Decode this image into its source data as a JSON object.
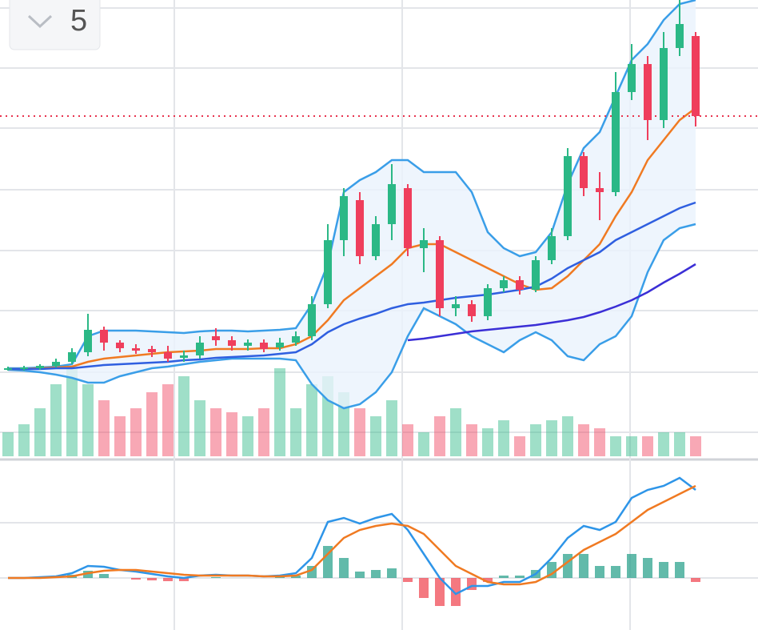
{
  "toolbar": {
    "interval": "5"
  },
  "chart_data": [
    {
      "type": "candlestick",
      "xlim": [
        -0.5,
        46.9
      ],
      "ylim": [
        0,
        570
      ],
      "xticks": [
        10.4,
        24.65,
        38.9
      ],
      "yticks": [
        30,
        105,
        182,
        257,
        333,
        410,
        485,
        560
      ],
      "grid": true,
      "up_color": "#2bb886",
      "down_color": "#ef3e5c",
      "price_line": 425,
      "price_line_color": "#e8334f",
      "open": [
        108,
        109,
        110,
        113,
        118,
        130,
        158,
        142,
        135,
        134,
        130,
        123,
        126,
        150,
        145,
        138,
        142,
        136,
        142,
        150,
        190,
        270,
        320,
        250,
        290,
        335,
        260,
        270,
        185,
        190,
        175,
        210,
        220,
        208,
        245,
        275,
        375,
        335,
        330,
        455,
        490,
        420,
        510,
        525
      ],
      "high": [
        112,
        113,
        115,
        122,
        135,
        178,
        162,
        145,
        140,
        138,
        138,
        132,
        150,
        160,
        150,
        146,
        146,
        148,
        156,
        200,
        290,
        335,
        330,
        300,
        365,
        340,
        285,
        275,
        200,
        195,
        215,
        225,
        225,
        250,
        285,
        385,
        380,
        355,
        480,
        515,
        500,
        530,
        570,
        530
      ],
      "low": [
        107,
        107,
        108,
        111,
        115,
        125,
        132,
        130,
        128,
        124,
        118,
        118,
        122,
        138,
        132,
        132,
        130,
        132,
        138,
        145,
        185,
        250,
        240,
        245,
        270,
        250,
        230,
        175,
        175,
        168,
        170,
        205,
        202,
        205,
        240,
        270,
        325,
        295,
        325,
        445,
        395,
        410,
        500,
        412
      ],
      "close": [
        110,
        111,
        113,
        118,
        130,
        158,
        142,
        135,
        132,
        130,
        122,
        126,
        142,
        145,
        138,
        142,
        134,
        142,
        150,
        190,
        270,
        325,
        250,
        290,
        340,
        260,
        270,
        185,
        190,
        175,
        210,
        220,
        208,
        245,
        275,
        375,
        335,
        330,
        455,
        490,
        420,
        510,
        540,
        425
      ],
      "volume_ylim": [
        0,
        570
      ],
      "volume": [
        30,
        40,
        60,
        90,
        110,
        90,
        70,
        50,
        60,
        80,
        90,
        100,
        70,
        60,
        55,
        50,
        60,
        110,
        60,
        90,
        100,
        80,
        60,
        50,
        70,
        40,
        30,
        50,
        60,
        40,
        35,
        45,
        25,
        40,
        45,
        50,
        40,
        35,
        25,
        25,
        25,
        30,
        30,
        25
      ],
      "series": [
        {
          "color": "#3a9ee8",
          "values": [
            110,
            110,
            111,
            112,
            115,
            150,
            157,
            157,
            157,
            156,
            155,
            154,
            156,
            157,
            157,
            156,
            157,
            158,
            160,
            190,
            240,
            330,
            345,
            355,
            370,
            370,
            355,
            355,
            355,
            330,
            280,
            260,
            250,
            255,
            280,
            340,
            385,
            405,
            450,
            495,
            515,
            545,
            565,
            570
          ]
        },
        {
          "color": "#3a9ee8",
          "values": [
            108,
            107,
            105,
            102,
            98,
            92,
            92,
            100,
            105,
            110,
            112,
            115,
            118,
            120,
            122,
            122,
            122,
            122,
            120,
            90,
            70,
            60,
            65,
            80,
            105,
            150,
            185,
            175,
            165,
            150,
            140,
            130,
            145,
            155,
            145,
            125,
            120,
            140,
            150,
            175,
            230,
            270,
            285,
            290
          ]
        },
        {
          "color": "#f07a22",
          "values": [
            109,
            109,
            110,
            111,
            112,
            118,
            122,
            124,
            126,
            128,
            130,
            131,
            132,
            134,
            134,
            134,
            135,
            135,
            140,
            150,
            170,
            195,
            210,
            225,
            240,
            260,
            265,
            265,
            255,
            245,
            235,
            225,
            215,
            208,
            210,
            225,
            245,
            265,
            300,
            330,
            370,
            395,
            420,
            435
          ]
        },
        {
          "color": "#2f5fe0",
          "values": [
            109,
            109,
            109,
            110,
            110,
            112,
            114,
            115,
            116,
            117,
            118,
            120,
            121,
            123,
            124,
            125,
            126,
            128,
            130,
            140,
            155,
            165,
            172,
            178,
            185,
            190,
            192,
            195,
            198,
            200,
            202,
            205,
            208,
            212,
            222,
            235,
            245,
            255,
            270,
            280,
            290,
            300,
            310,
            317
          ]
        },
        {
          "color": "#3b2fd6",
          "values": [
            null,
            null,
            null,
            null,
            null,
            null,
            null,
            null,
            null,
            null,
            null,
            null,
            null,
            null,
            null,
            null,
            null,
            null,
            null,
            null,
            null,
            null,
            null,
            null,
            null,
            145,
            147,
            150,
            153,
            156,
            158,
            160,
            162,
            164,
            167,
            170,
            174,
            180,
            187,
            195,
            205,
            217,
            228,
            240
          ]
        }
      ],
      "band_fill": "#eaf3fc"
    },
    {
      "type": "macd",
      "xlim": [
        -0.5,
        46.9
      ],
      "ylim": [
        -65,
        147
      ],
      "yticks": [
        0,
        69
      ],
      "grid": true,
      "pos_color": "#1f9d86",
      "neg_color": "#ef3e4a",
      "histogram": [
        0,
        0,
        1,
        1,
        4,
        9,
        5,
        0,
        -2,
        -3,
        -4,
        -4,
        0,
        1,
        0,
        0,
        0,
        1,
        3,
        15,
        40,
        25,
        8,
        10,
        12,
        -5,
        -25,
        -35,
        -35,
        -15,
        -5,
        3,
        3,
        10,
        20,
        30,
        30,
        15,
        15,
        30,
        25,
        20,
        20,
        -5
      ],
      "series": [
        {
          "color": "#2e95e8",
          "values": [
            0,
            0,
            1,
            2,
            6,
            15,
            14,
            10,
            8,
            5,
            2,
            0,
            3,
            4,
            3,
            3,
            2,
            3,
            6,
            25,
            70,
            75,
            68,
            75,
            80,
            60,
            30,
            0,
            -20,
            -10,
            -10,
            -5,
            -5,
            5,
            25,
            50,
            65,
            60,
            70,
            100,
            110,
            115,
            125,
            110
          ]
        },
        {
          "color": "#f07a22",
          "values": [
            0,
            0,
            0,
            1,
            2,
            6,
            9,
            10,
            10,
            8,
            6,
            4,
            3,
            3,
            3,
            3,
            2,
            2,
            3,
            10,
            30,
            50,
            60,
            65,
            68,
            65,
            55,
            35,
            15,
            5,
            -5,
            -8,
            -8,
            -5,
            5,
            20,
            35,
            45,
            55,
            70,
            85,
            95,
            105,
            115
          ]
        }
      ]
    }
  ]
}
